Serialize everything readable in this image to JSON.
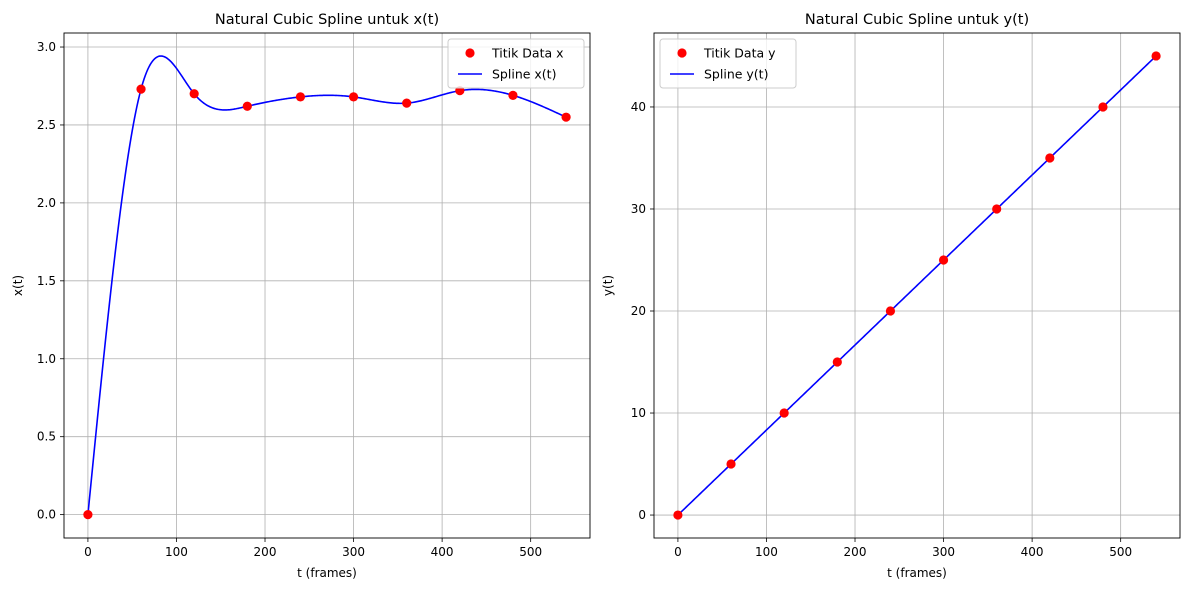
{
  "chart_data": [
    {
      "type": "line",
      "title": "Natural Cubic Spline untuk x(t)",
      "xlabel": "t (frames)",
      "ylabel": "x(t)",
      "xlim": [
        -27,
        567
      ],
      "ylim": [
        -0.15,
        3.09
      ],
      "xticks": [
        0,
        100,
        200,
        300,
        400,
        500
      ],
      "yticks": [
        0.0,
        0.5,
        1.0,
        1.5,
        2.0,
        2.5,
        3.0
      ],
      "xtick_labels": [
        "0",
        "100",
        "200",
        "300",
        "400",
        "500"
      ],
      "ytick_labels": [
        "0.0",
        "0.5",
        "1.0",
        "1.5",
        "2.0",
        "2.5",
        "3.0"
      ],
      "grid": true,
      "legend_position": "upper right",
      "series": [
        {
          "name": "Titik Data x",
          "kind": "scatter",
          "color": "#ff0000",
          "x": [
            0,
            60,
            120,
            180,
            240,
            300,
            360,
            420,
            480,
            540
          ],
          "y": [
            0.0,
            2.73,
            2.7,
            2.62,
            2.68,
            2.68,
            2.64,
            2.72,
            2.69,
            2.55
          ]
        },
        {
          "name": "Spline x(t)",
          "kind": "line",
          "color": "#0000ff",
          "interpolation": "natural-cubic-spline",
          "x": [
            0,
            60,
            120,
            180,
            240,
            300,
            360,
            420,
            480,
            540
          ],
          "y": [
            0.0,
            2.73,
            2.7,
            2.62,
            2.68,
            2.68,
            2.64,
            2.72,
            2.69,
            2.55
          ]
        }
      ]
    },
    {
      "type": "line",
      "title": "Natural Cubic Spline untuk y(t)",
      "xlabel": "t (frames)",
      "ylabel": "y(t)",
      "xlim": [
        -27,
        567
      ],
      "ylim": [
        -2.25,
        47.25
      ],
      "xticks": [
        0,
        100,
        200,
        300,
        400,
        500
      ],
      "yticks": [
        0,
        10,
        20,
        30,
        40
      ],
      "xtick_labels": [
        "0",
        "100",
        "200",
        "300",
        "400",
        "500"
      ],
      "ytick_labels": [
        "0",
        "10",
        "20",
        "30",
        "40"
      ],
      "grid": true,
      "legend_position": "upper left",
      "series": [
        {
          "name": "Titik Data y",
          "kind": "scatter",
          "color": "#ff0000",
          "x": [
            0,
            60,
            120,
            180,
            240,
            300,
            360,
            420,
            480,
            540
          ],
          "y": [
            0,
            5,
            10,
            15,
            20,
            25,
            30,
            35,
            40,
            45
          ]
        },
        {
          "name": "Spline y(t)",
          "kind": "line",
          "color": "#0000ff",
          "interpolation": "natural-cubic-spline",
          "x": [
            0,
            60,
            120,
            180,
            240,
            300,
            360,
            420,
            480,
            540
          ],
          "y": [
            0,
            5,
            10,
            15,
            20,
            25,
            30,
            35,
            40,
            45
          ]
        }
      ]
    }
  ]
}
